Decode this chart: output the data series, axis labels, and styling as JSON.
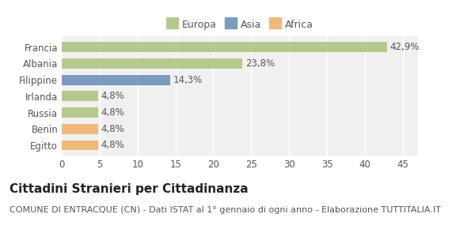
{
  "categories": [
    "Francia",
    "Albania",
    "Filippine",
    "Irlanda",
    "Russia",
    "Benin",
    "Egitto"
  ],
  "values": [
    42.9,
    23.8,
    14.3,
    4.8,
    4.8,
    4.8,
    4.8
  ],
  "labels": [
    "42,9%",
    "23,8%",
    "14,3%",
    "4,8%",
    "4,8%",
    "4,8%",
    "4,8%"
  ],
  "colors": [
    "#b5c98e",
    "#b5c98e",
    "#7b9bbf",
    "#b5c98e",
    "#b5c98e",
    "#f0b97a",
    "#f0b97a"
  ],
  "legend": [
    {
      "label": "Europa",
      "color": "#b5c98e"
    },
    {
      "label": "Asia",
      "color": "#7b9bbf"
    },
    {
      "label": "Africa",
      "color": "#f0b97a"
    }
  ],
  "xlim": [
    0,
    47
  ],
  "xticks": [
    0,
    5,
    10,
    15,
    20,
    25,
    30,
    35,
    40,
    45
  ],
  "title": "Cittadini Stranieri per Cittadinanza",
  "subtitle": "COMUNE DI ENTRACQUE (CN) - Dati ISTAT al 1° gennaio di ogni anno - Elaborazione TUTTITALIA.IT",
  "fig_color": "#ffffff",
  "bar_bg_color": "#f0f0f0",
  "grid_color": "#ffffff",
  "title_fontsize": 11,
  "subtitle_fontsize": 8,
  "label_fontsize": 8.5,
  "tick_fontsize": 8.5,
  "legend_fontsize": 9,
  "bar_height": 0.62
}
